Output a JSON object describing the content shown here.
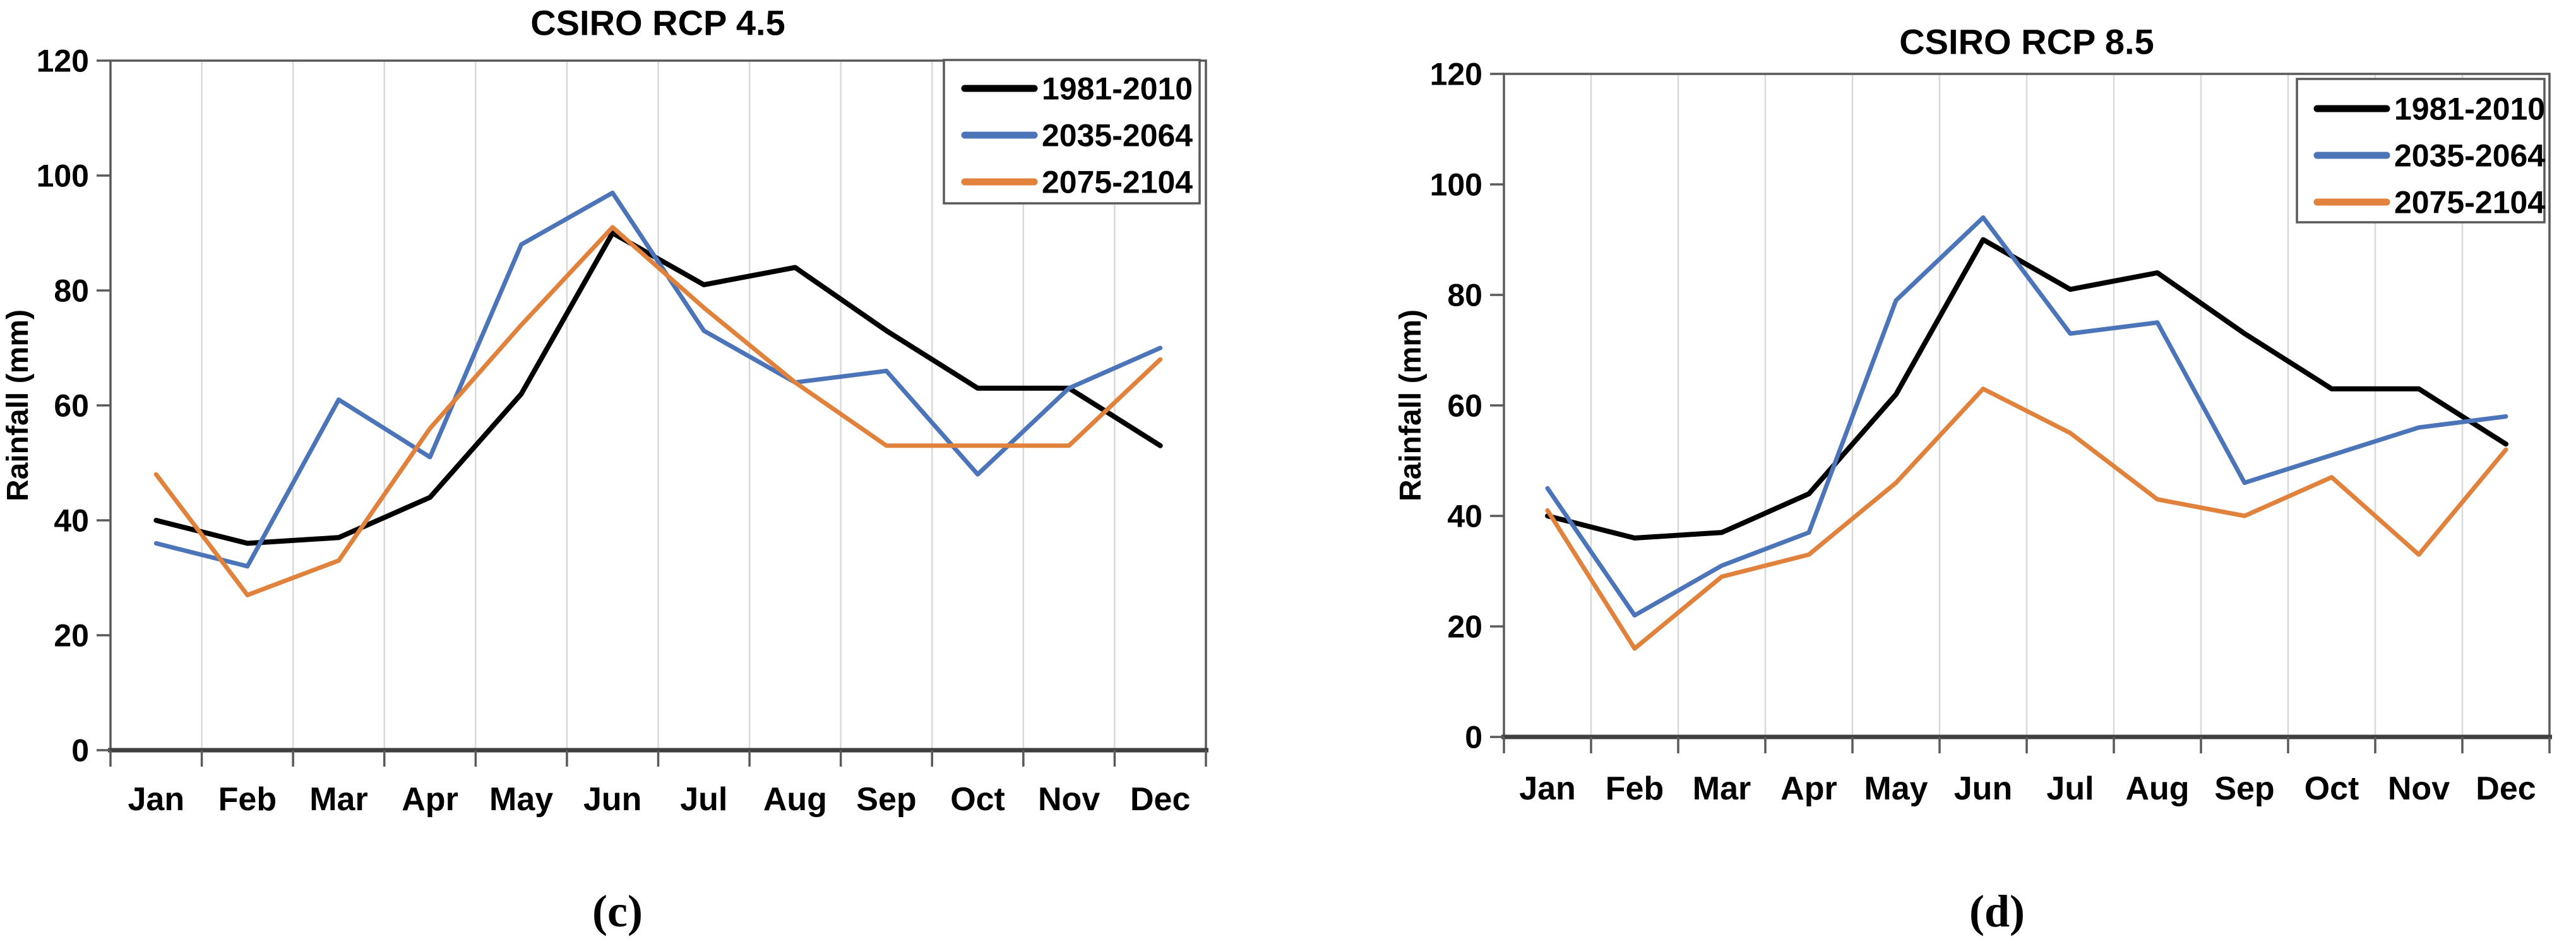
{
  "chart_data": [
    {
      "id": "csiro-rcp-45",
      "type": "line",
      "title": "CSIRO RCP 4.5",
      "caption": "(c)",
      "ylabel": "Rainfall (mm)",
      "ylim": [
        0,
        120
      ],
      "yticks": [
        0,
        20,
        40,
        60,
        80,
        100,
        120
      ],
      "grid": "vertical",
      "legend_position": "top-right-inside",
      "categories": [
        "Jan",
        "Feb",
        "Mar",
        "Apr",
        "May",
        "Jun",
        "Jul",
        "Aug",
        "Sep",
        "Oct",
        "Nov",
        "Dec"
      ],
      "series": [
        {
          "name": "1981-2010",
          "color": "#000000",
          "values": [
            40,
            36,
            37,
            44,
            62,
            90,
            81,
            84,
            73,
            63,
            63,
            53
          ]
        },
        {
          "name": "2035-2064",
          "color": "#4C74B8",
          "values": [
            36,
            32,
            61,
            51,
            88,
            97,
            73,
            64,
            66,
            48,
            63,
            70
          ]
        },
        {
          "name": "2075-2104",
          "color": "#E0813C",
          "values": [
            48,
            27,
            33,
            56,
            74,
            91,
            77,
            64,
            53,
            53,
            53,
            68
          ]
        }
      ]
    },
    {
      "id": "csiro-rcp-85",
      "type": "line",
      "title": "CSIRO RCP 8.5",
      "caption": "(d)",
      "ylabel": "Rainfall (mm)",
      "ylim": [
        0,
        120
      ],
      "yticks": [
        0,
        20,
        40,
        60,
        80,
        100,
        120
      ],
      "grid": "vertical",
      "legend_position": "top-right-inside",
      "categories": [
        "Jan",
        "Feb",
        "Mar",
        "Apr",
        "May",
        "Jun",
        "Jul",
        "Aug",
        "Sep",
        "Oct",
        "Nov",
        "Dec"
      ],
      "series": [
        {
          "name": "1981-2010",
          "color": "#000000",
          "values": [
            40,
            36,
            37,
            44,
            62,
            90,
            81,
            84,
            73,
            63,
            63,
            53
          ]
        },
        {
          "name": "2035-2064",
          "color": "#4C74B8",
          "values": [
            45,
            22,
            31,
            37,
            79,
            94,
            73,
            75,
            46,
            51,
            56,
            58
          ]
        },
        {
          "name": "2075-2104",
          "color": "#E0813C",
          "values": [
            41,
            16,
            29,
            33,
            46,
            63,
            55,
            43,
            40,
            47,
            33,
            52
          ]
        }
      ]
    }
  ],
  "style": {
    "grid_color": "#D9D9D9",
    "frame_color": "#595959",
    "axis_color": "#3F3F3F",
    "background": "#FFFFFF"
  }
}
